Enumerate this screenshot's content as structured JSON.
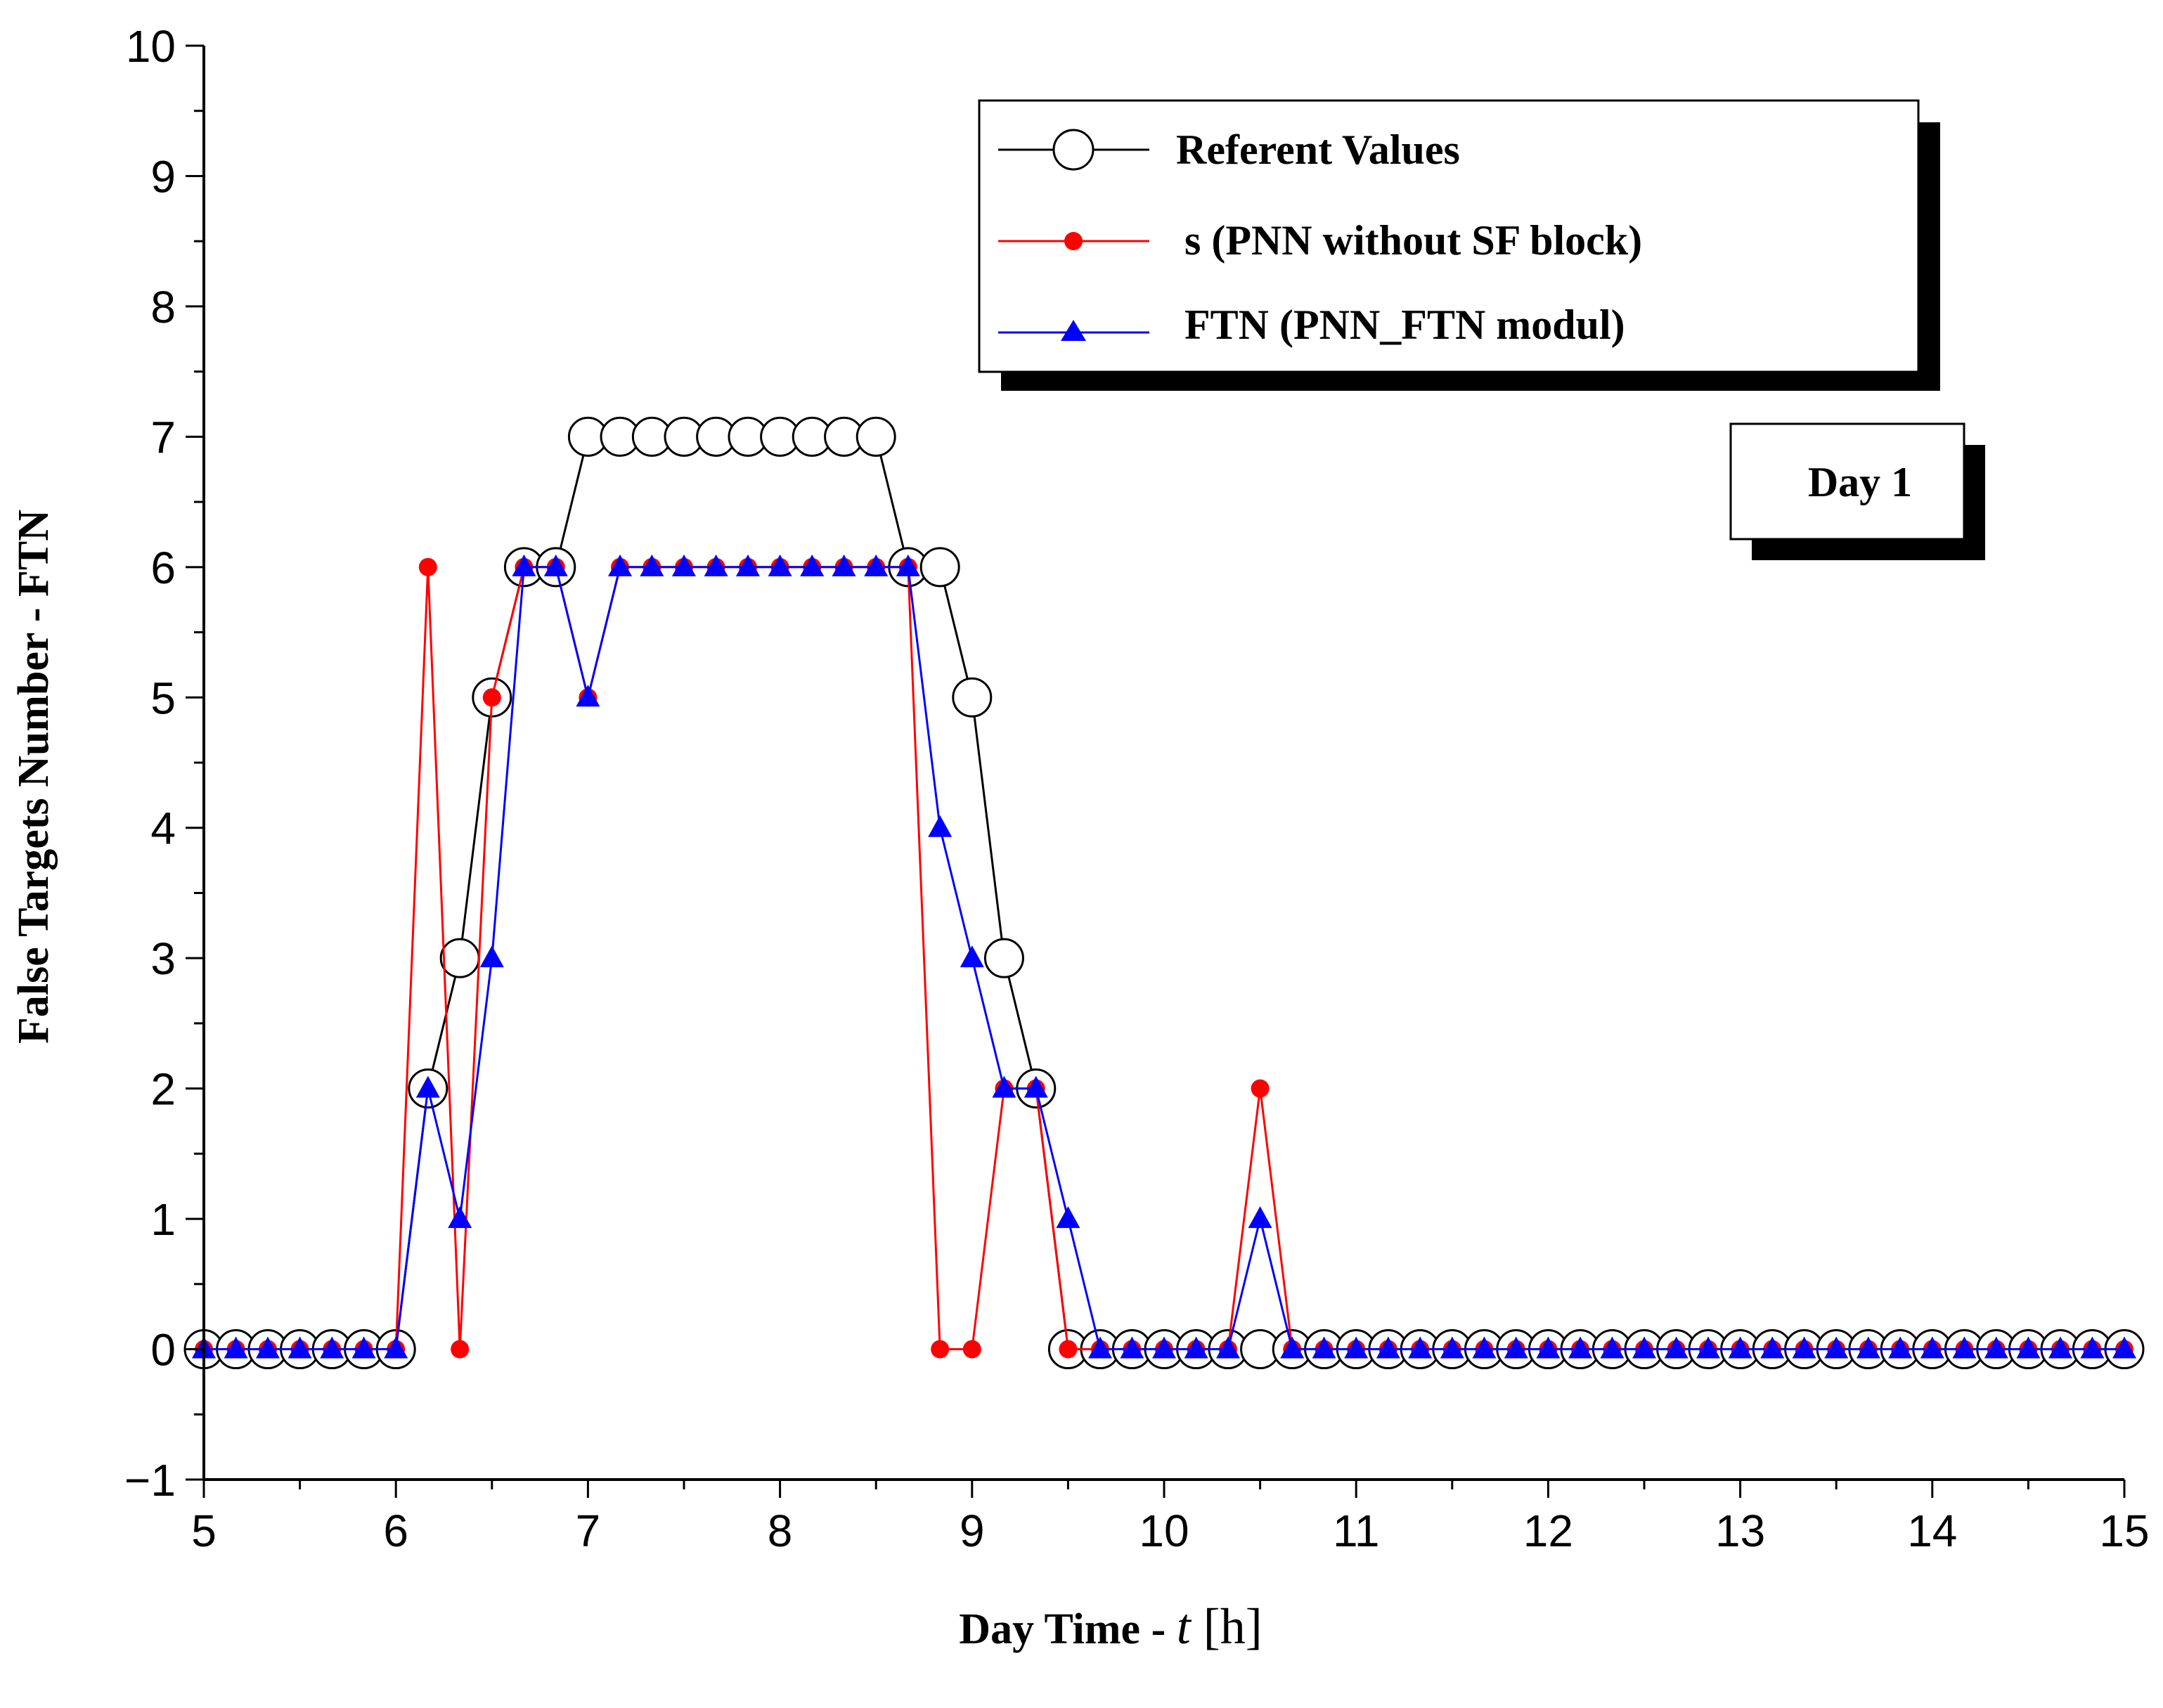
{
  "chart_data": {
    "type": "line",
    "title": "",
    "xlabel_prefix": "Day Time - ",
    "xlabel_var": "t",
    "xlabel_unit": " [h]",
    "ylabel": "False Targets Number - FTN",
    "xlim": [
      5,
      15
    ],
    "ylim": [
      -1,
      10
    ],
    "xticks": [
      5,
      6,
      7,
      8,
      9,
      10,
      11,
      12,
      13,
      14,
      15
    ],
    "yticks": [
      -1,
      0,
      1,
      2,
      3,
      4,
      5,
      6,
      7,
      8,
      9,
      10
    ],
    "ytick_labels": [
      "−1",
      "0",
      "1",
      "2",
      "3",
      "4",
      "5",
      "6",
      "7",
      "8",
      "9",
      "10"
    ],
    "annotation": "Day 1",
    "legend_position": "top-right",
    "series": [
      {
        "name": "Referent Values",
        "color": "#000000",
        "marker": "open-circle",
        "x": [
          5.0,
          5.167,
          5.333,
          5.5,
          5.667,
          5.833,
          6.0,
          6.167,
          6.333,
          6.5,
          6.667,
          6.833,
          7.0,
          7.167,
          7.333,
          7.5,
          7.667,
          7.833,
          8.0,
          8.167,
          8.333,
          8.5,
          8.667,
          8.833,
          9.0,
          9.167,
          9.333,
          9.5,
          9.667,
          9.833,
          10.0,
          10.167,
          10.333,
          10.5,
          10.667,
          10.833,
          11.0,
          11.167,
          11.333,
          11.5,
          11.667,
          11.833,
          12.0,
          12.167,
          12.333,
          12.5,
          12.667,
          12.833,
          13.0,
          13.167,
          13.333,
          13.5,
          13.667,
          13.833,
          14.0,
          14.167,
          14.333,
          14.5,
          14.667,
          14.833,
          15.0
        ],
        "values": [
          0,
          0,
          0,
          0,
          0,
          0,
          0,
          2,
          3,
          5,
          6,
          6,
          7,
          7,
          7,
          7,
          7,
          7,
          7,
          7,
          7,
          7,
          6,
          6,
          5,
          3,
          2,
          0,
          0,
          0,
          0,
          0,
          0,
          0,
          0,
          0,
          0,
          0,
          0,
          0,
          0,
          0,
          0,
          0,
          0,
          0,
          0,
          0,
          0,
          0,
          0,
          0,
          0,
          0,
          0,
          0,
          0,
          0,
          0,
          0,
          0
        ]
      },
      {
        "name": "s (PNN without SF block)",
        "color": "#ff0000",
        "marker": "filled-circle",
        "x": [
          5.0,
          5.167,
          5.333,
          5.5,
          5.667,
          5.833,
          6.0,
          6.167,
          6.333,
          6.5,
          6.667,
          6.833,
          7.0,
          7.167,
          7.333,
          7.5,
          7.667,
          7.833,
          8.0,
          8.167,
          8.333,
          8.5,
          8.667,
          8.833,
          9.0,
          9.167,
          9.333,
          9.5,
          9.667,
          9.833,
          10.0,
          10.167,
          10.333,
          10.5,
          10.667,
          10.833,
          11.0,
          11.167,
          11.333,
          11.5,
          11.667,
          11.833,
          12.0,
          12.167,
          12.333,
          12.5,
          12.667,
          12.833,
          13.0,
          13.167,
          13.333,
          13.5,
          13.667,
          13.833,
          14.0,
          14.167,
          14.333,
          14.5,
          14.667,
          14.833,
          15.0
        ],
        "values": [
          0,
          0,
          0,
          0,
          0,
          0,
          0,
          6,
          0,
          5,
          6,
          6,
          5,
          6,
          6,
          6,
          6,
          6,
          6,
          6,
          6,
          6,
          6,
          0,
          0,
          2,
          2,
          0,
          0,
          0,
          0,
          0,
          0,
          2,
          0,
          0,
          0,
          0,
          0,
          0,
          0,
          0,
          0,
          0,
          0,
          0,
          0,
          0,
          0,
          0,
          0,
          0,
          0,
          0,
          0,
          0,
          0,
          0,
          0,
          0,
          0
        ]
      },
      {
        "name": "FTN (PNN_FTN  modul)",
        "color": "#0000ff",
        "marker": "filled-triangle",
        "x": [
          5.0,
          5.167,
          5.333,
          5.5,
          5.667,
          5.833,
          6.0,
          6.167,
          6.333,
          6.5,
          6.667,
          6.833,
          7.0,
          7.167,
          7.333,
          7.5,
          7.667,
          7.833,
          8.0,
          8.167,
          8.333,
          8.5,
          8.667,
          8.833,
          9.0,
          9.167,
          9.333,
          9.5,
          9.667,
          9.833,
          10.0,
          10.167,
          10.333,
          10.5,
          10.667,
          10.833,
          11.0,
          11.167,
          11.333,
          11.5,
          11.667,
          11.833,
          12.0,
          12.167,
          12.333,
          12.5,
          12.667,
          12.833,
          13.0,
          13.167,
          13.333,
          13.5,
          13.667,
          13.833,
          14.0,
          14.167,
          14.333,
          14.5,
          14.667,
          14.833,
          15.0
        ],
        "values": [
          0,
          0,
          0,
          0,
          0,
          0,
          0,
          2,
          1,
          3,
          6,
          6,
          5,
          6,
          6,
          6,
          6,
          6,
          6,
          6,
          6,
          6,
          6,
          4,
          3,
          2,
          2,
          1,
          0,
          0,
          0,
          0,
          0,
          1,
          0,
          0,
          0,
          0,
          0,
          0,
          0,
          0,
          0,
          0,
          0,
          0,
          0,
          0,
          0,
          0,
          0,
          0,
          0,
          0,
          0,
          0,
          0,
          0,
          0,
          0,
          0
        ]
      }
    ]
  }
}
